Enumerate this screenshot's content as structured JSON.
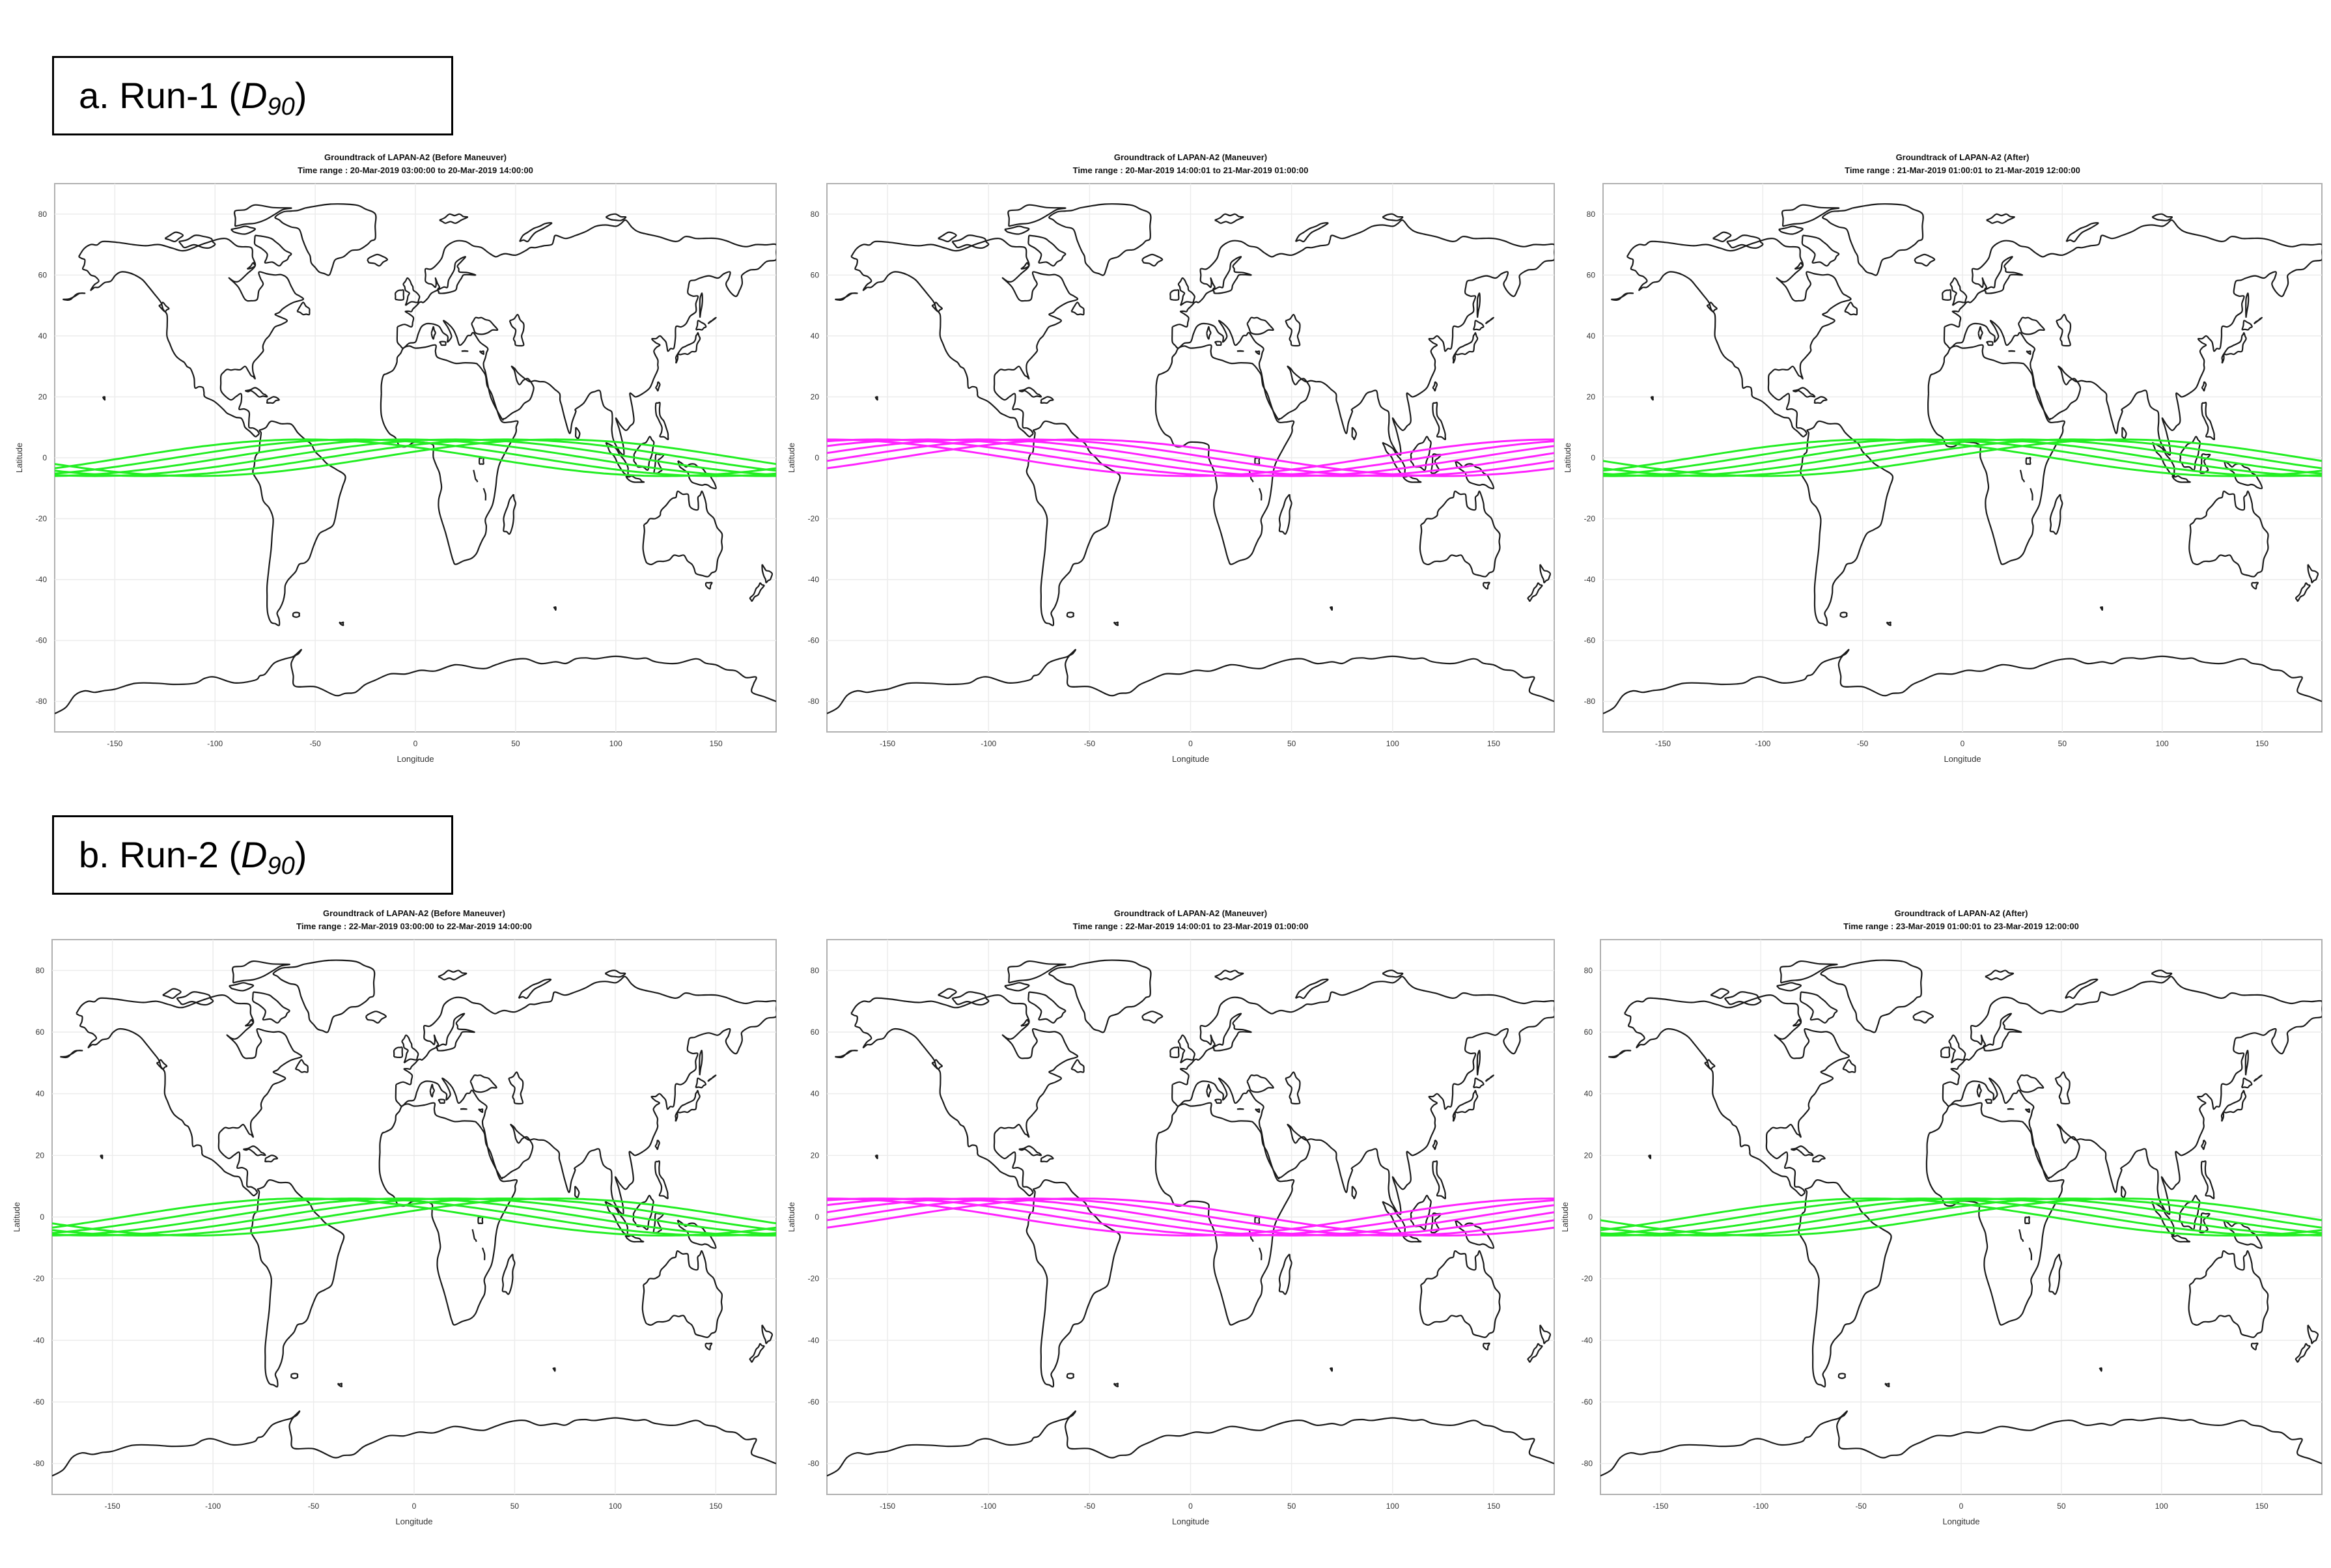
{
  "figure": {
    "run_labels": [
      {
        "prefix": "a. Run-1 (",
        "symbol": "D",
        "subscript": "90",
        "suffix": ")"
      },
      {
        "prefix": "b. Run-2 (",
        "symbol": "D",
        "subscript": "90",
        "suffix": ")"
      }
    ]
  },
  "colors": {
    "before": "#22ee22",
    "maneuver": "#ff22ff",
    "after": "#22ee22",
    "coast": "#1a1a1a"
  },
  "chart_data": [
    {
      "type": "line",
      "run": 1,
      "phase": "before",
      "title": "Groundtrack of LAPAN-A2 (Before Maneuver)",
      "subtitle": "Time range : 20-Mar-2019 03:00:00 to 20-Mar-2019 14:00:00",
      "xlabel": "Longitude",
      "ylabel": "Latitude",
      "xlim": [
        -180,
        180
      ],
      "ylim": [
        -90,
        90
      ],
      "xticks": [
        -150,
        -100,
        -50,
        0,
        50,
        100,
        150
      ],
      "yticks": [
        -80,
        -60,
        -40,
        -20,
        0,
        20,
        40,
        60,
        80
      ],
      "grid": true,
      "track_color": "#22ee22",
      "track": {
        "inclination": 6,
        "x0": -20,
        "passes": 6,
        "shift": -25
      }
    },
    {
      "type": "line",
      "run": 1,
      "phase": "maneuver",
      "title": "Groundtrack of LAPAN-A2 (Maneuver)",
      "subtitle": "Time range : 20-Mar-2019 14:00:01 to 21-Mar-2019 01:00:00",
      "xlabel": "Longitude",
      "ylabel": "Latitude",
      "xlim": [
        -180,
        180
      ],
      "ylim": [
        -90,
        90
      ],
      "xticks": [
        -150,
        -100,
        -50,
        0,
        50,
        100,
        150
      ],
      "yticks": [
        -80,
        -60,
        -40,
        -20,
        0,
        20,
        40,
        60,
        80
      ],
      "grid": true,
      "track_color": "#ff22ff",
      "track": {
        "inclination": 6,
        "x0": -145,
        "passes": 6,
        "shift": -25
      }
    },
    {
      "type": "line",
      "run": 1,
      "phase": "after",
      "title": "Groundtrack of LAPAN-A2 (After)",
      "subtitle": "Time range : 21-Mar-2019 01:00:01 to 21-Mar-2019 12:00:00",
      "xlabel": "Longitude",
      "ylabel": "Latitude",
      "xlim": [
        -180,
        180
      ],
      "ylim": [
        -90,
        90
      ],
      "xticks": [
        -150,
        -100,
        -50,
        0,
        50,
        100,
        150
      ],
      "yticks": [
        -80,
        -60,
        -40,
        -20,
        0,
        20,
        40,
        60,
        80
      ],
      "grid": true,
      "track_color": "#22ee22",
      "track": {
        "inclination": 6,
        "x0": -10,
        "passes": 6,
        "shift": -25
      }
    },
    {
      "type": "line",
      "run": 2,
      "phase": "before",
      "title": "Groundtrack of LAPAN-A2 (Before Maneuver)",
      "subtitle": "Time range : 22-Mar-2019 03:00:00 to 22-Mar-2019 14:00:00",
      "xlabel": "Longitude",
      "ylabel": "Latitude",
      "xlim": [
        -180,
        180
      ],
      "ylim": [
        -90,
        90
      ],
      "xticks": [
        -150,
        -100,
        -50,
        0,
        50,
        100,
        150
      ],
      "yticks": [
        -80,
        -60,
        -40,
        -20,
        0,
        20,
        40,
        60,
        80
      ],
      "grid": true,
      "track_color": "#22ee22",
      "track": {
        "inclination": 6,
        "x0": -20,
        "passes": 6,
        "shift": -25
      }
    },
    {
      "type": "line",
      "run": 2,
      "phase": "maneuver",
      "title": "Groundtrack of LAPAN-A2 (Maneuver)",
      "subtitle": "Time range : 22-Mar-2019 14:00:01 to 23-Mar-2019 01:00:00",
      "xlabel": "Longitude",
      "ylabel": "Latitude",
      "xlim": [
        -180,
        180
      ],
      "ylim": [
        -90,
        90
      ],
      "xticks": [
        -150,
        -100,
        -50,
        0,
        50,
        100,
        150
      ],
      "yticks": [
        -80,
        -60,
        -40,
        -20,
        0,
        20,
        40,
        60,
        80
      ],
      "grid": true,
      "track_color": "#ff22ff",
      "track": {
        "inclination": 6,
        "x0": -145,
        "passes": 6,
        "shift": -25
      }
    },
    {
      "type": "line",
      "run": 2,
      "phase": "after",
      "title": "Groundtrack of LAPAN-A2 (After)",
      "subtitle": "Time range : 23-Mar-2019 01:00:01 to 23-Mar-2019 12:00:00",
      "xlabel": "Longitude",
      "ylabel": "Latitude",
      "xlim": [
        -180,
        180
      ],
      "ylim": [
        -90,
        90
      ],
      "xticks": [
        -150,
        -100,
        -50,
        0,
        50,
        100,
        150
      ],
      "yticks": [
        -80,
        -60,
        -40,
        -20,
        0,
        20,
        40,
        60,
        80
      ],
      "grid": true,
      "track_color": "#22ee22",
      "track": {
        "inclination": 6,
        "x0": -10,
        "passes": 6,
        "shift": -25
      }
    }
  ]
}
